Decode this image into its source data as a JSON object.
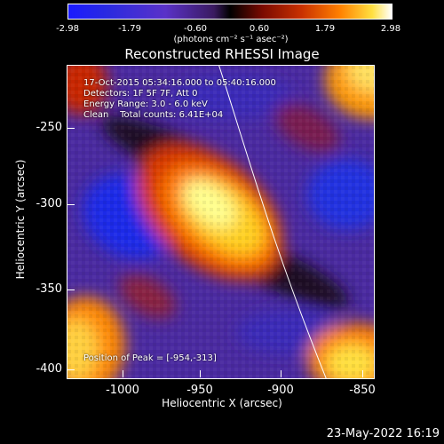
{
  "colorbar": {
    "ticks": [
      "-2.98",
      "-1.79",
      "-0.60",
      "0.60",
      "1.79",
      "2.98"
    ],
    "unit": "(photons cm⁻² s⁻¹ asec⁻²)"
  },
  "title": "Reconstructed RHESSI Image",
  "annotations": {
    "time": "17-Oct-2015 05:34:16.000 to 05:40:16.000",
    "detectors": "Detectors: 1F 5F 7F, Att 0",
    "energy": "Energy Range: 3.0 - 6.0 keV",
    "clean": "Clean    Total counts: 6.41E+04",
    "peak": "Position of Peak = [-954,-313]"
  },
  "axes": {
    "x_label": "Heliocentric X (arcsec)",
    "y_label": "Heliocentric Y (arcsec)",
    "x_ticks": [
      "-1000",
      "-950",
      "-900",
      "-850"
    ],
    "y_ticks": [
      "-250",
      "-300",
      "-350",
      "-400"
    ]
  },
  "footer": "23-May-2022 16:19"
}
